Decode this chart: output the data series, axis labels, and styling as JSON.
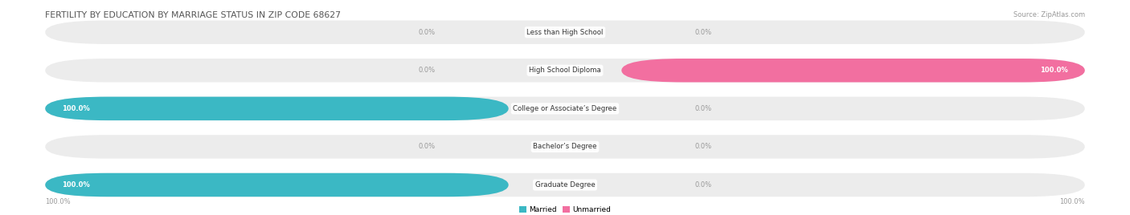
{
  "title": "FERTILITY BY EDUCATION BY MARRIAGE STATUS IN ZIP CODE 68627",
  "source": "Source: ZipAtlas.com",
  "categories": [
    "Less than High School",
    "High School Diploma",
    "College or Associate’s Degree",
    "Bachelor’s Degree",
    "Graduate Degree"
  ],
  "married_pct": [
    0.0,
    0.0,
    100.0,
    0.0,
    100.0
  ],
  "unmarried_pct": [
    0.0,
    100.0,
    0.0,
    0.0,
    0.0
  ],
  "married_color": "#3bb8c4",
  "unmarried_color": "#f26fa0",
  "bg_bar_color": "#ececec",
  "title_color": "#555555",
  "label_color": "#999999",
  "background_color": "#ffffff",
  "legend_married": "Married",
  "legend_unmarried": "Unmarried",
  "bottom_left_label": "100.0%",
  "bottom_right_label": "100.0%"
}
